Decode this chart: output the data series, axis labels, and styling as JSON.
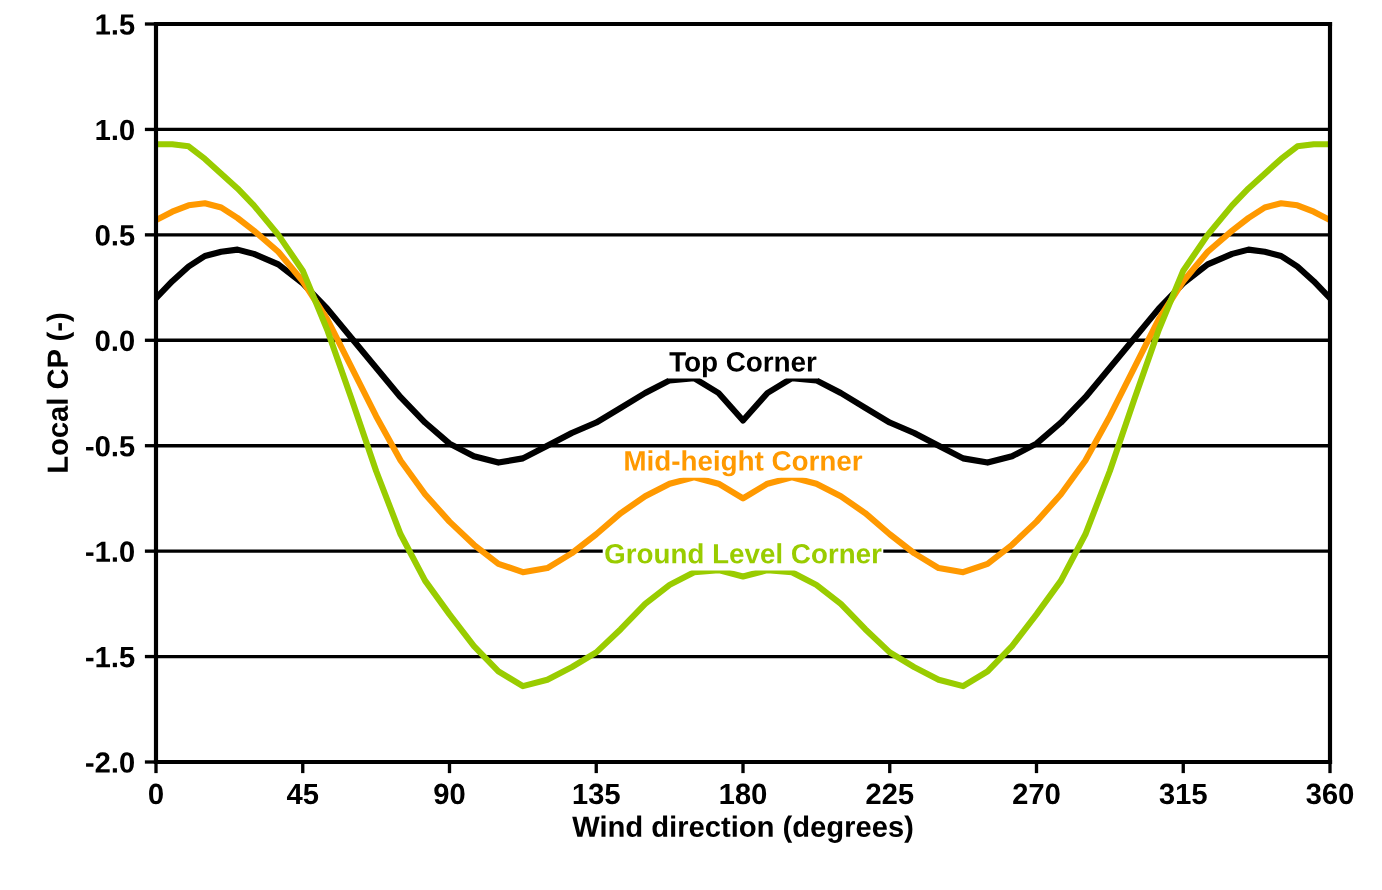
{
  "chart_data": {
    "type": "line",
    "xlabel": "Wind direction (degrees)",
    "ylabel": "Local CP (-)",
    "x": [
      0,
      5,
      10,
      15,
      20,
      25,
      30,
      37.5,
      45,
      52.5,
      60,
      67.5,
      75,
      82.5,
      90,
      97.5,
      105,
      112.5,
      120,
      127.5,
      135,
      142.5,
      150,
      157.5,
      165,
      172.5,
      180,
      187.5,
      195,
      202.5,
      210,
      217.5,
      225,
      232.5,
      240,
      247.5,
      255,
      262.5,
      270,
      277.5,
      285,
      292.5,
      300,
      307.5,
      315,
      322.5,
      330,
      335,
      340,
      345,
      350,
      355,
      360
    ],
    "series": [
      {
        "name": "Top Corner",
        "color": "#000000",
        "values": [
          0.2,
          0.28,
          0.35,
          0.4,
          0.42,
          0.43,
          0.41,
          0.36,
          0.27,
          0.15,
          0.01,
          -0.13,
          -0.27,
          -0.39,
          -0.49,
          -0.55,
          -0.58,
          -0.56,
          -0.5,
          -0.44,
          -0.39,
          -0.32,
          -0.25,
          -0.19,
          -0.18,
          -0.25,
          -0.38,
          -0.25,
          -0.18,
          -0.19,
          -0.25,
          -0.32,
          -0.39,
          -0.44,
          -0.5,
          -0.56,
          -0.58,
          -0.55,
          -0.49,
          -0.39,
          -0.27,
          -0.13,
          0.01,
          0.15,
          0.27,
          0.36,
          0.41,
          0.43,
          0.42,
          0.4,
          0.35,
          0.28,
          0.2
        ]
      },
      {
        "name": "Mid-height Corner",
        "color": "#ff9900",
        "values": [
          0.57,
          0.61,
          0.64,
          0.65,
          0.63,
          0.58,
          0.52,
          0.42,
          0.28,
          0.1,
          -0.13,
          -0.36,
          -0.57,
          -0.73,
          -0.86,
          -0.97,
          -1.06,
          -1.1,
          -1.08,
          -1.01,
          -0.92,
          -0.82,
          -0.74,
          -0.68,
          -0.65,
          -0.68,
          -0.75,
          -0.68,
          -0.65,
          -0.68,
          -0.74,
          -0.82,
          -0.92,
          -1.01,
          -1.08,
          -1.1,
          -1.06,
          -0.97,
          -0.86,
          -0.73,
          -0.57,
          -0.36,
          -0.13,
          0.1,
          0.28,
          0.42,
          0.52,
          0.58,
          0.63,
          0.65,
          0.64,
          0.61,
          0.57
        ]
      },
      {
        "name": "Ground Level Corner",
        "color": "#99cc00",
        "values": [
          0.93,
          0.93,
          0.92,
          0.86,
          0.79,
          0.72,
          0.64,
          0.5,
          0.33,
          0.05,
          -0.28,
          -0.62,
          -0.92,
          -1.14,
          -1.3,
          -1.45,
          -1.57,
          -1.64,
          -1.61,
          -1.55,
          -1.48,
          -1.37,
          -1.25,
          -1.16,
          -1.1,
          -1.09,
          -1.12,
          -1.09,
          -1.1,
          -1.16,
          -1.25,
          -1.37,
          -1.48,
          -1.55,
          -1.61,
          -1.64,
          -1.57,
          -1.45,
          -1.3,
          -1.14,
          -0.92,
          -0.62,
          -0.28,
          0.05,
          0.33,
          0.5,
          0.64,
          0.72,
          0.79,
          0.86,
          0.92,
          0.93,
          0.93
        ]
      }
    ],
    "xlim": [
      0,
      360
    ],
    "xticks": [
      0,
      45,
      90,
      135,
      180,
      225,
      270,
      315,
      360
    ],
    "ylim": [
      -2.0,
      1.5
    ],
    "yticks": [
      {
        "value": -2.0,
        "label": "-2.0"
      },
      {
        "value": -1.5,
        "label": "-1.5"
      },
      {
        "value": -1.0,
        "label": "-1.0"
      },
      {
        "value": -0.5,
        "label": "-0.5"
      },
      {
        "value": 0.0,
        "label": "0.0"
      },
      {
        "value": 0.5,
        "label": "0.5"
      },
      {
        "value": 1.0,
        "label": "1.0"
      },
      {
        "value": 1.5,
        "label": "1.5"
      }
    ],
    "grid": "y",
    "legend": false,
    "line_style": "solid",
    "marker": "none"
  }
}
